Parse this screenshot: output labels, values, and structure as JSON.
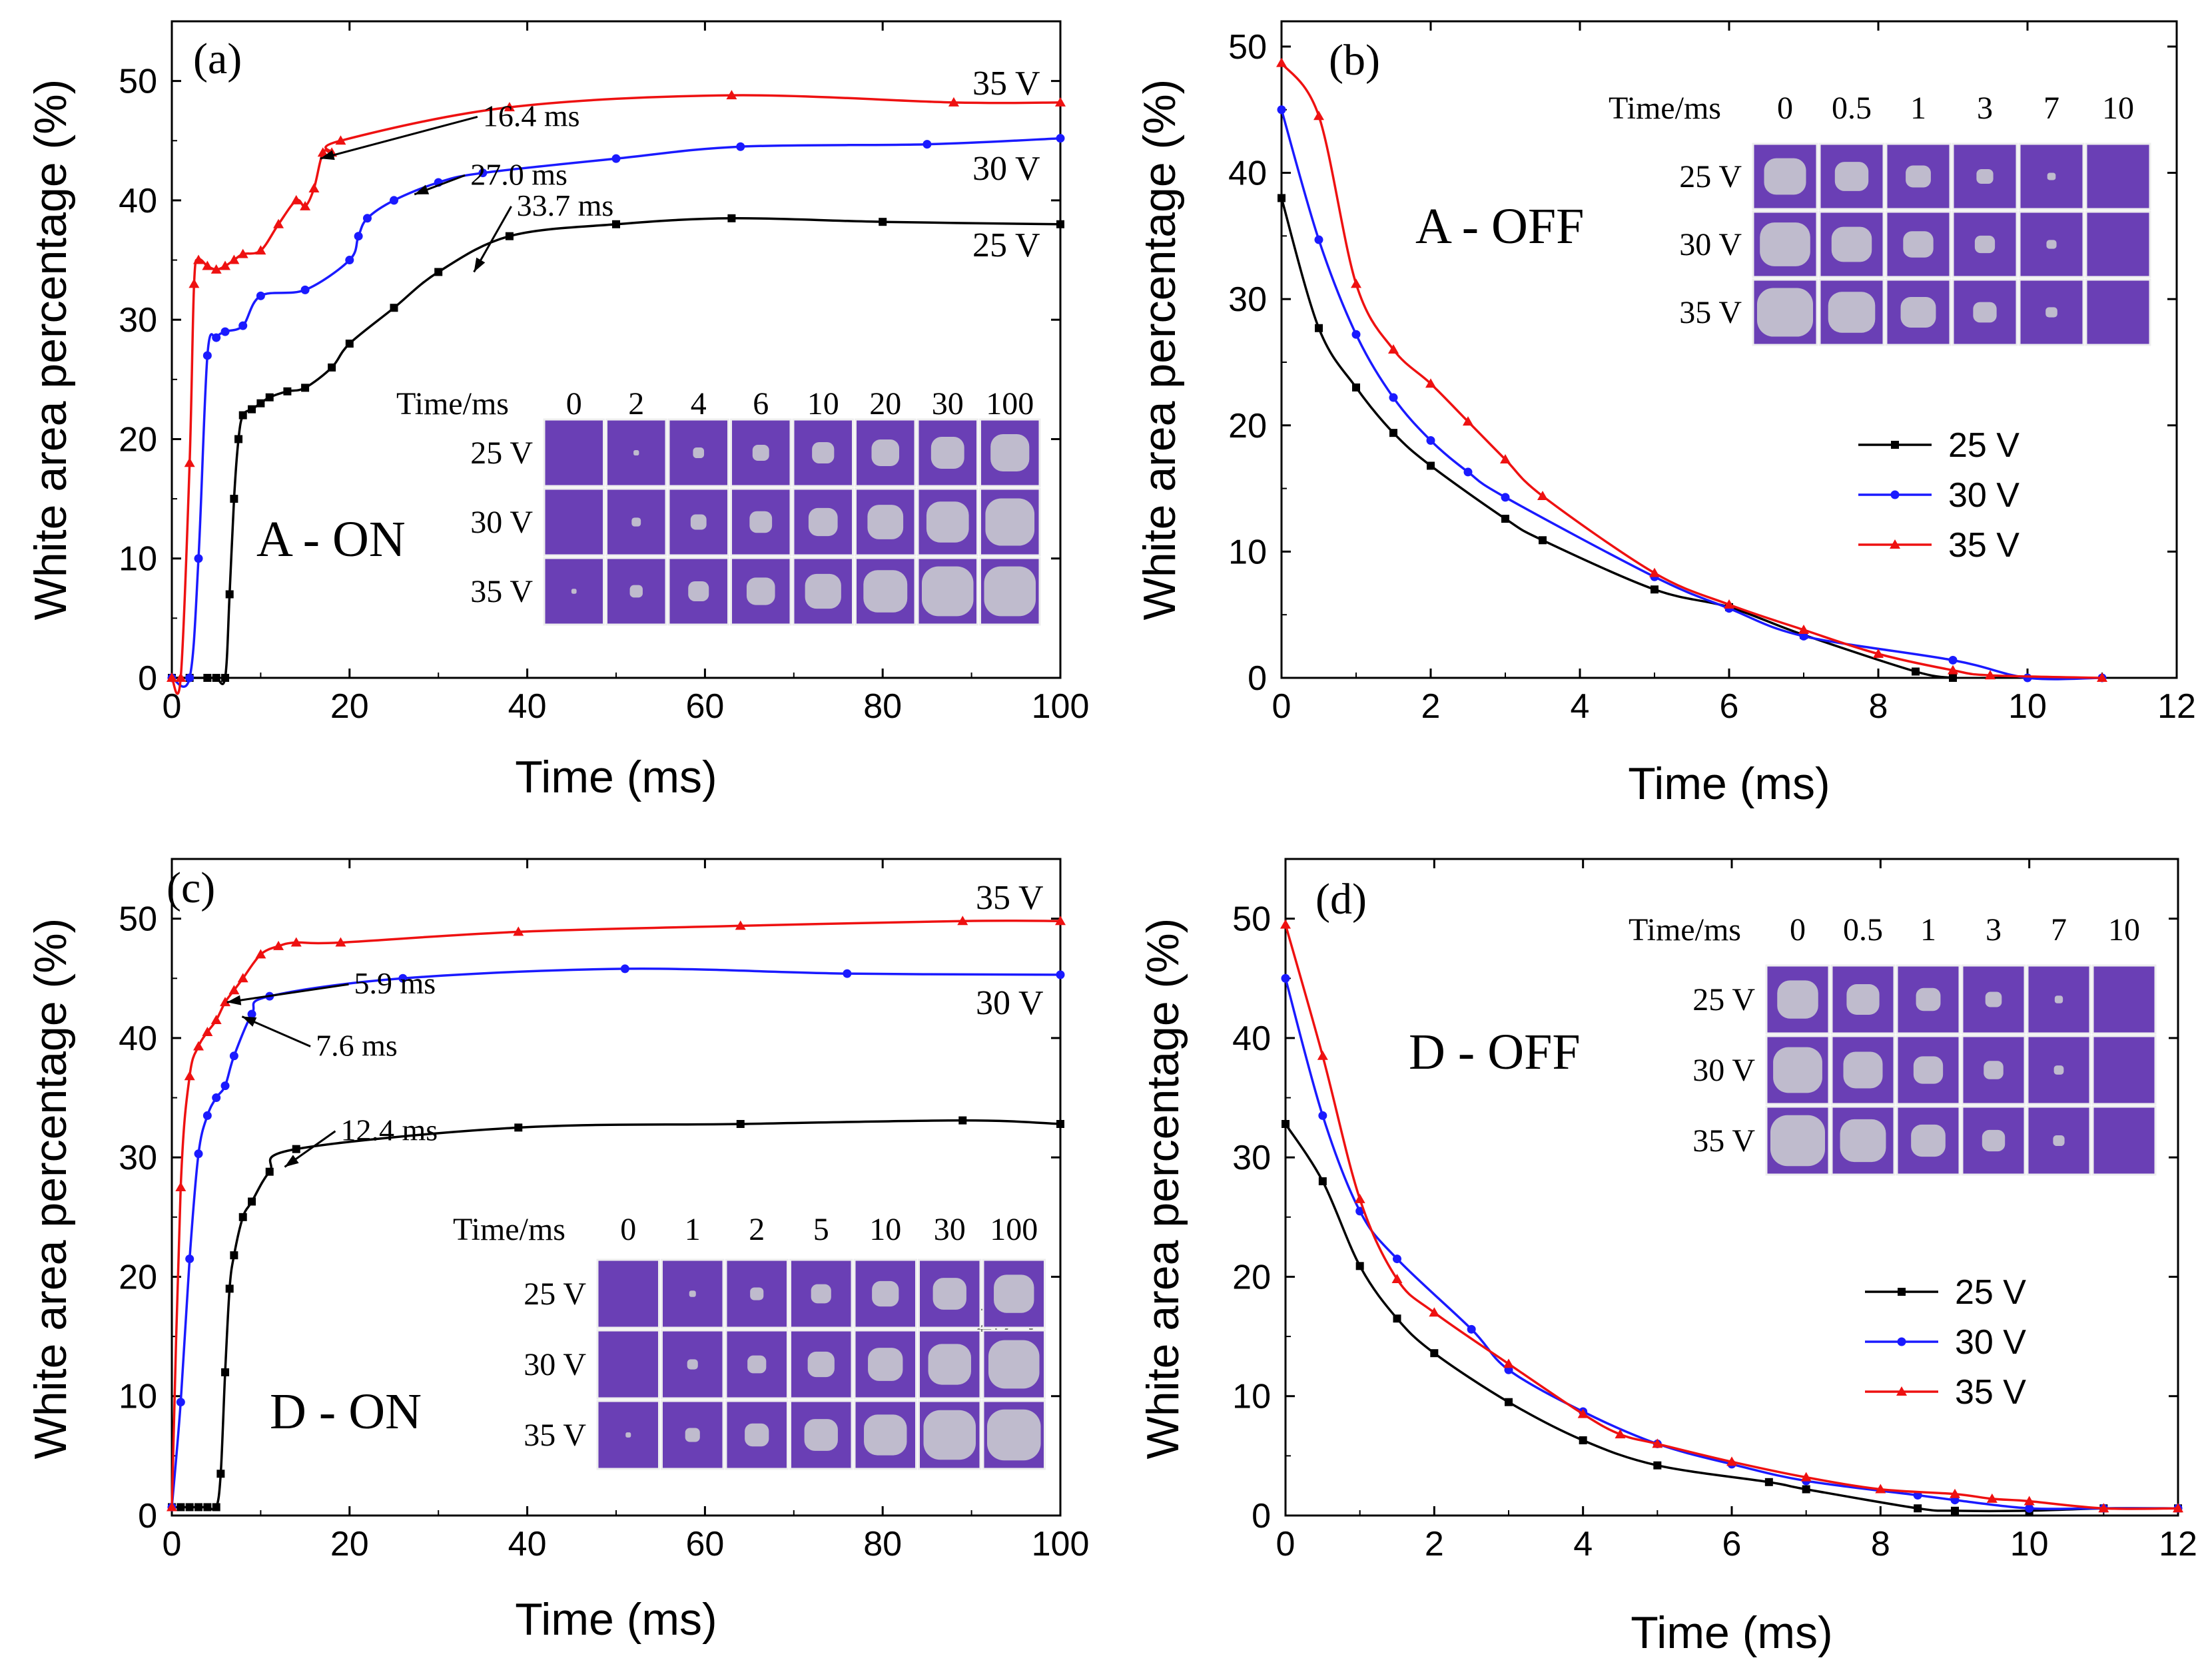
{
  "colors": {
    "v25": "#000000",
    "v30": "#1a1aff",
    "v35": "#ee1111",
    "cell_bg": "#6a3fb5",
    "cell_border": "#eeeeee",
    "blob": "#c9c9cf"
  },
  "chart_data": [
    {
      "panel": "(a)",
      "type": "line",
      "title": "A - ON",
      "xlabel": "Time (ms)",
      "ylabel": "White area percentage (%)",
      "xlim": [
        0,
        100
      ],
      "ylim": [
        0,
        55
      ],
      "xticks": [
        "0",
        "20",
        "40",
        "60",
        "80",
        "100"
      ],
      "yticks": [
        "0",
        "10",
        "20",
        "30",
        "40",
        "50"
      ],
      "series": [
        {
          "name": "25 V",
          "key": "v25",
          "marker": "square",
          "line_label": "25 V",
          "x": [
            0,
            2,
            4,
            5,
            6,
            6.5,
            7,
            7.5,
            8,
            9,
            10,
            11,
            13,
            15,
            18,
            20,
            25,
            30,
            38,
            50,
            63,
            80,
            100
          ],
          "y": [
            0,
            0,
            0,
            0,
            0,
            7,
            15,
            20,
            22,
            22.5,
            23,
            23.5,
            24,
            24.3,
            26,
            28,
            31,
            34,
            37,
            38,
            38.5,
            38.2,
            38
          ]
        },
        {
          "name": "30 V",
          "key": "v30",
          "marker": "circle",
          "line_label": "30 V",
          "x": [
            0,
            2,
            3,
            4,
            5,
            6,
            8,
            10,
            15,
            20,
            21,
            22,
            25,
            30,
            35,
            50,
            64,
            85,
            100
          ],
          "y": [
            0,
            0,
            10,
            27,
            28.5,
            29,
            29.5,
            32,
            32.5,
            35,
            37,
            38.5,
            40,
            41.5,
            42.3,
            43.5,
            44.5,
            44.7,
            45.2
          ]
        },
        {
          "name": "35 V",
          "key": "v35",
          "marker": "triangle",
          "line_label": "35 V",
          "x": [
            0,
            1,
            2,
            2.5,
            3,
            4,
            5,
            6,
            7,
            8,
            10,
            12,
            14,
            15,
            16,
            17,
            18,
            19,
            38,
            63,
            88,
            100
          ],
          "y": [
            0,
            0,
            18,
            33,
            35,
            34.5,
            34.2,
            34.5,
            35,
            35.5,
            35.8,
            38,
            40,
            39.5,
            41,
            44,
            44,
            45,
            47.8,
            48.8,
            48.2,
            48.2
          ]
        }
      ],
      "annotations": [
        {
          "text": "16.4 ms",
          "x": 16.4,
          "y": 43.5
        },
        {
          "text": "27.0 ms",
          "x": 27.0,
          "y": 40.5
        },
        {
          "text": "33.7 ms",
          "x": 33.7,
          "y": 34.0
        }
      ],
      "inset": {
        "header": "Time/ms",
        "times": [
          "0",
          "2",
          "4",
          "6",
          "10",
          "20",
          "30",
          "100"
        ],
        "rows": [
          "25 V",
          "30 V",
          "35 V"
        ]
      }
    },
    {
      "panel": "(b)",
      "type": "line",
      "title": "A - OFF",
      "xlabel": "Time (ms)",
      "ylabel": "White area percentage (%)",
      "xlim": [
        0,
        12
      ],
      "ylim": [
        0,
        52
      ],
      "xticks": [
        "0",
        "2",
        "4",
        "6",
        "8",
        "10",
        "12"
      ],
      "yticks": [
        "0",
        "10",
        "20",
        "30",
        "40",
        "50"
      ],
      "series": [
        {
          "name": "25 V",
          "key": "v25",
          "marker": "square",
          "x": [
            0,
            0.5,
            1,
            1.5,
            2,
            3,
            3.5,
            5,
            6,
            7,
            8.5,
            9
          ],
          "y": [
            38,
            27.7,
            23,
            19.4,
            16.8,
            12.6,
            10.9,
            7,
            5.6,
            3.4,
            0.5,
            0
          ]
        },
        {
          "name": "30 V",
          "key": "v30",
          "marker": "circle",
          "x": [
            0,
            0.5,
            1,
            1.5,
            2,
            2.5,
            3,
            5,
            6,
            7,
            9,
            10,
            11
          ],
          "y": [
            45,
            34.7,
            27.2,
            22.2,
            18.8,
            16.3,
            14.3,
            8,
            5.5,
            3.3,
            1.4,
            0,
            0
          ]
        },
        {
          "name": "35 V",
          "key": "v35",
          "marker": "triangle",
          "x": [
            0,
            0.5,
            1,
            1.5,
            2,
            2.5,
            3,
            3.5,
            5,
            6,
            7,
            8,
            9,
            9.5,
            11
          ],
          "y": [
            48.7,
            44.5,
            31.2,
            26,
            23.3,
            20.3,
            17.3,
            14.4,
            8.3,
            5.8,
            3.8,
            1.9,
            0.6,
            0.2,
            0
          ]
        }
      ],
      "legend": [
        "25 V",
        "30 V",
        "35 V"
      ],
      "inset": {
        "header": "Time/ms",
        "times": [
          "0",
          "0.5",
          "1",
          "3",
          "7",
          "10"
        ],
        "rows": [
          "25 V",
          "30 V",
          "35 V"
        ]
      }
    },
    {
      "panel": "(c)",
      "type": "line",
      "title": "D - ON",
      "xlabel": "Time (ms)",
      "ylabel": "White area percentage (%)",
      "xlim": [
        0,
        100
      ],
      "ylim": [
        0,
        55
      ],
      "xticks": [
        "0",
        "20",
        "40",
        "60",
        "80",
        "100"
      ],
      "yticks": [
        "0",
        "10",
        "20",
        "30",
        "40",
        "50"
      ],
      "series": [
        {
          "name": "25 V",
          "key": "v25",
          "marker": "square",
          "line_label": "25 V",
          "x": [
            0,
            1,
            2,
            3,
            4,
            5,
            5.5,
            6,
            6.5,
            7,
            8,
            9,
            11,
            14,
            39,
            64,
            89,
            100
          ],
          "y": [
            0.7,
            0.7,
            0.7,
            0.7,
            0.7,
            0.7,
            3.5,
            12,
            19,
            21.8,
            25,
            26.3,
            28.8,
            30.7,
            32.5,
            32.8,
            33.1,
            32.8
          ]
        },
        {
          "name": "30 V",
          "key": "v30",
          "marker": "circle",
          "line_label": "30 V",
          "x": [
            0,
            1,
            2,
            3,
            4,
            5,
            6,
            7,
            9,
            11,
            26,
            51,
            76,
            100
          ],
          "y": [
            0.7,
            9.5,
            21.5,
            30.3,
            33.5,
            35,
            36,
            38.5,
            42,
            43.5,
            45,
            45.8,
            45.4,
            45.3
          ]
        },
        {
          "name": "35 V",
          "key": "v35",
          "marker": "triangle",
          "line_label": "35 V",
          "x": [
            0,
            1,
            2,
            3,
            4,
            5,
            6,
            7,
            8,
            10,
            12,
            14,
            19,
            39,
            64,
            89,
            100
          ],
          "y": [
            0.7,
            27.5,
            36.8,
            39.3,
            40.5,
            41.5,
            43,
            44,
            45,
            47,
            47.7,
            48,
            48,
            48.9,
            49.4,
            49.8,
            49.8
          ]
        }
      ],
      "annotations": [
        {
          "text": "5.9 ms",
          "x": 5.9,
          "y": 43.0
        },
        {
          "text": "7.6 ms",
          "x": 7.6,
          "y": 41.8
        },
        {
          "text": "12.4 ms",
          "x": 12.4,
          "y": 29.2
        }
      ],
      "inset": {
        "header": "Time/ms",
        "times": [
          "0",
          "1",
          "2",
          "5",
          "10",
          "30",
          "100"
        ],
        "rows": [
          "25 V",
          "30 V",
          "35 V"
        ]
      }
    },
    {
      "panel": "(d)",
      "type": "line",
      "title": "D - OFF",
      "xlabel": "Time (ms)",
      "ylabel": "White area percentage (%)",
      "xlim": [
        0,
        12
      ],
      "ylim": [
        0,
        55
      ],
      "xticks": [
        "0",
        "2",
        "4",
        "6",
        "8",
        "10",
        "12"
      ],
      "yticks": [
        "0",
        "10",
        "20",
        "30",
        "40",
        "50"
      ],
      "series": [
        {
          "name": "25 V",
          "key": "v25",
          "marker": "square",
          "x": [
            0,
            0.5,
            1,
            1.5,
            2,
            3,
            4,
            5,
            6.5,
            7,
            8.5,
            9,
            10,
            11,
            12
          ],
          "y": [
            32.8,
            28,
            20.9,
            16.5,
            13.6,
            9.5,
            6.3,
            4.2,
            2.8,
            2.2,
            0.6,
            0.4,
            0.4,
            0.6,
            0.6
          ]
        },
        {
          "name": "30 V",
          "key": "v30",
          "marker": "circle",
          "x": [
            0,
            0.5,
            1,
            1.5,
            2.5,
            3,
            4,
            5,
            6,
            7,
            8.5,
            9,
            10,
            11,
            12
          ],
          "y": [
            45,
            33.5,
            25.5,
            21.5,
            15.6,
            12.2,
            8.7,
            6,
            4.3,
            2.9,
            1.7,
            1.3,
            0.6,
            0.6,
            0.6
          ]
        },
        {
          "name": "35 V",
          "key": "v35",
          "marker": "triangle",
          "x": [
            0,
            0.5,
            1,
            1.5,
            2,
            3,
            4,
            4.5,
            5,
            6,
            7,
            8,
            9,
            9.5,
            10,
            11,
            12
          ],
          "y": [
            49.5,
            38.5,
            26.5,
            19.8,
            17,
            12.7,
            8.5,
            6.8,
            6,
            4.5,
            3.2,
            2.2,
            1.8,
            1.4,
            1.2,
            0.6,
            0.6
          ]
        }
      ],
      "legend": [
        "25 V",
        "30 V",
        "35 V"
      ],
      "inset": {
        "header": "Time/ms",
        "times": [
          "0",
          "0.5",
          "1",
          "3",
          "7",
          "10"
        ],
        "rows": [
          "25 V",
          "30 V",
          "35 V"
        ]
      }
    }
  ]
}
